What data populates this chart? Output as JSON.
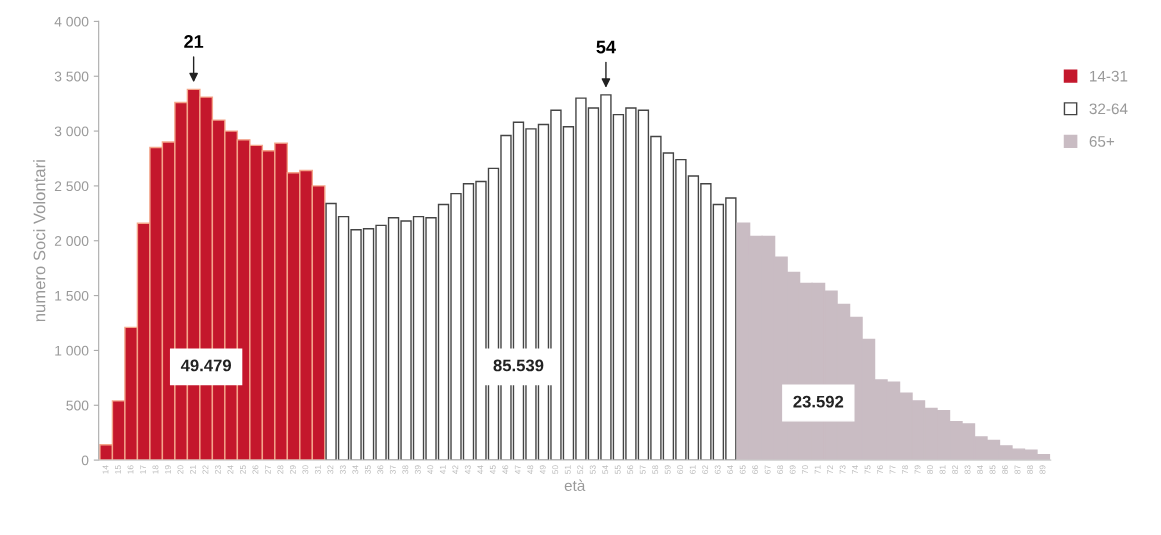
{
  "chart_data": {
    "type": "bar",
    "xlabel": "età",
    "ylabel": "numero Soci Volontari",
    "categories": [
      "14",
      "15",
      "16",
      "17",
      "18",
      "19",
      "20",
      "21",
      "22",
      "23",
      "24",
      "25",
      "26",
      "27",
      "28",
      "29",
      "30",
      "31",
      "32",
      "33",
      "34",
      "35",
      "36",
      "37",
      "38",
      "39",
      "40",
      "41",
      "42",
      "43",
      "44",
      "45",
      "46",
      "47",
      "48",
      "49",
      "50",
      "51",
      "52",
      "53",
      "54",
      "55",
      "56",
      "57",
      "58",
      "59",
      "60",
      "61",
      "62",
      "63",
      "64",
      "65",
      "66",
      "67",
      "68",
      "69",
      "70",
      "71",
      "72",
      "73",
      "74",
      "75",
      "76",
      "77",
      "78",
      "79",
      "80",
      "81",
      "82",
      "83",
      "84",
      "85",
      "86",
      "87",
      "88",
      "89"
    ],
    "series": [
      {
        "name": "14-31",
        "color": "#c4172c",
        "values": [
          140,
          540,
          1210,
          2160,
          2850,
          2900,
          3260,
          3380,
          3310,
          3100,
          3000,
          2920,
          2870,
          2820,
          2890,
          2620,
          2640,
          2500,
          null,
          null,
          null,
          null,
          null,
          null,
          null,
          null,
          null,
          null,
          null,
          null,
          null,
          null,
          null,
          null,
          null,
          null,
          null,
          null,
          null,
          null,
          null,
          null,
          null,
          null,
          null,
          null,
          null,
          null,
          null,
          null,
          null,
          null,
          null,
          null,
          null,
          null,
          null,
          null,
          null,
          null,
          null,
          null,
          null,
          null,
          null,
          null,
          null,
          null,
          null,
          null,
          null,
          null,
          null,
          null,
          null,
          null
        ]
      },
      {
        "name": "32-64",
        "color": "#ffffff",
        "values": [
          null,
          null,
          null,
          null,
          null,
          null,
          null,
          null,
          null,
          null,
          null,
          null,
          null,
          null,
          null,
          null,
          null,
          null,
          2340,
          2220,
          2100,
          2110,
          2140,
          2210,
          2180,
          2220,
          2210,
          2330,
          2430,
          2520,
          2540,
          2660,
          2960,
          3080,
          3020,
          3060,
          3190,
          3040,
          3300,
          3210,
          3330,
          3150,
          3210,
          3190,
          2950,
          2800,
          2740,
          2590,
          2520,
          2330,
          2390,
          null,
          null,
          null,
          null,
          null,
          null,
          null,
          null,
          null,
          null,
          null,
          null,
          null,
          null,
          null,
          null,
          null,
          null,
          null,
          null,
          null,
          null,
          null,
          null,
          null
        ]
      },
      {
        "name": "65+",
        "color": "#c9bcc3",
        "values": [
          null,
          null,
          null,
          null,
          null,
          null,
          null,
          null,
          null,
          null,
          null,
          null,
          null,
          null,
          null,
          null,
          null,
          null,
          null,
          null,
          null,
          null,
          null,
          null,
          null,
          null,
          null,
          null,
          null,
          null,
          null,
          null,
          null,
          null,
          null,
          null,
          null,
          null,
          null,
          null,
          null,
          null,
          null,
          null,
          null,
          null,
          null,
          null,
          null,
          null,
          null,
          2160,
          2040,
          2040,
          1850,
          1710,
          1610,
          1610,
          1540,
          1420,
          1300,
          1100,
          730,
          710,
          610,
          540,
          470,
          450,
          350,
          330,
          210,
          180,
          130,
          100,
          90,
          50
        ]
      }
    ],
    "ylim": [
      0,
      4000
    ],
    "yticks": [
      0,
      500,
      {
        "value": 1000,
        "label": "1 000"
      },
      {
        "value": 1500,
        "label": "1 500"
      },
      {
        "value": 2000,
        "label": "2 000"
      },
      {
        "value": 2500,
        "label": "2 500"
      },
      {
        "value": 3000,
        "label": "3 000"
      },
      {
        "value": 3500,
        "label": "3 500"
      },
      {
        "value": 4000,
        "label": "4 000"
      }
    ],
    "grid": false,
    "legend": "top right",
    "annotations": [
      {
        "text": "21",
        "x": "21",
        "y": 3380
      },
      {
        "text": "54",
        "x": "54",
        "y": 3330
      },
      {
        "text": "49.479",
        "x": "22",
        "y": 850
      },
      {
        "text": "85.539",
        "x": "47",
        "y": 850
      },
      {
        "text": "23.592",
        "x": "71",
        "y": 520
      }
    ]
  }
}
